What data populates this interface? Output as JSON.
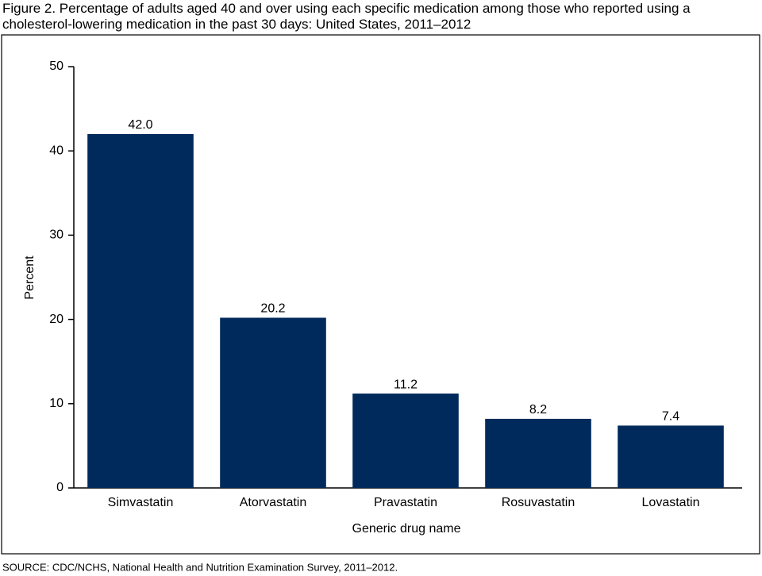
{
  "chart_data": {
    "type": "bar",
    "title": "Figure 2. Percentage of adults aged 40 and over using each specific medication among those who reported using a cholesterol-lowering medication in the past 30 days: United States, 2011–2012",
    "x_label": "Generic drug name",
    "y_label": "Percent",
    "categories": [
      "Simvastatin",
      "Atorvastatin",
      "Pravastatin",
      "Rosuvastatin",
      "Lovastatin"
    ],
    "values": [
      42.0,
      20.2,
      11.2,
      8.2,
      7.4
    ],
    "value_labels": [
      "42.0",
      "20.2",
      "11.2",
      "8.2",
      "7.4"
    ],
    "color": "#002a5c",
    "ylim": [
      0,
      50
    ],
    "yticks": [
      0,
      10,
      20,
      30,
      40,
      50
    ],
    "grid": false,
    "source": "SOURCE: CDC/NCHS, National Health and Nutrition Examination Survey, 2011–2012."
  }
}
